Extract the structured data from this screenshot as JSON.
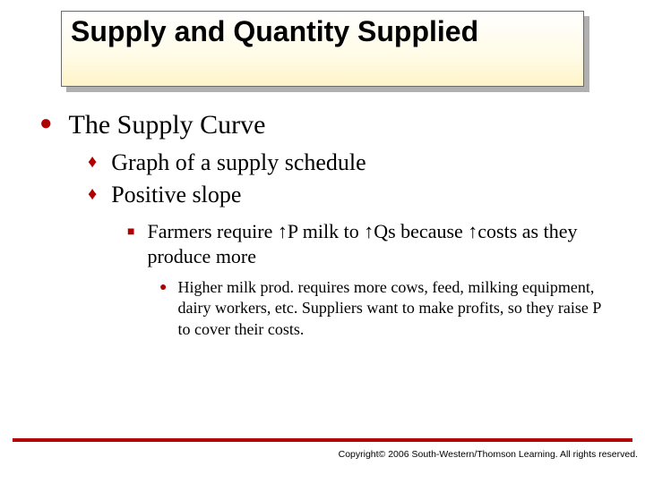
{
  "title": "Supply and Quantity Supplied",
  "colors": {
    "accent": "#b00000",
    "title_border": "#6a6a6a",
    "title_shadow": "#b0b0b0",
    "title_grad_top": "#ffffff",
    "title_grad_bottom": "#fff4c8",
    "text": "#000000",
    "background": "#ffffff"
  },
  "bullets": {
    "lvl1": {
      "glyph": "●",
      "text": "The Supply Curve",
      "fontsize": 30
    },
    "lvl2a": {
      "glyph": "♦",
      "text": "Graph of a supply schedule",
      "fontsize": 26
    },
    "lvl2b": {
      "glyph": "♦",
      "text": "Positive slope",
      "fontsize": 26
    },
    "lvl3": {
      "glyph": "■",
      "text": "Farmers require ↑P milk to ↑Qs because ↑costs as they produce more",
      "fontsize": 22
    },
    "lvl4": {
      "glyph": "●",
      "text": "Higher milk prod. requires more cows, feed, milking equipment, dairy workers, etc. Suppliers want to make profits, so they raise P to cover their costs.",
      "fontsize": 18
    }
  },
  "copyright": "Copyright© 2006 South-Western/Thomson Learning. All rights reserved."
}
